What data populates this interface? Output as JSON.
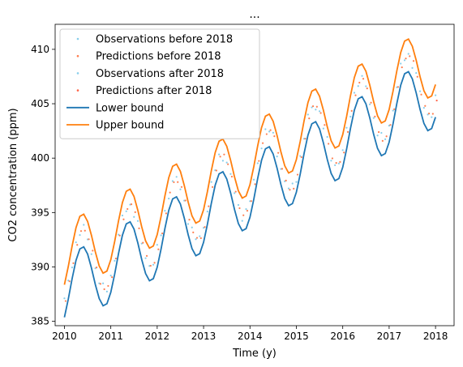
{
  "chart_data": {
    "type": "line",
    "title": "...",
    "xlabel": "Time (y)",
    "ylabel": "CO2 concentration (ppm)",
    "xlim": [
      2009.8,
      2018.4
    ],
    "ylim": [
      384.6,
      412.3
    ],
    "xticks": [
      2010,
      2011,
      2012,
      2013,
      2014,
      2015,
      2016,
      2017,
      2018
    ],
    "yticks": [
      385,
      390,
      395,
      400,
      405,
      410
    ],
    "grid": false,
    "legend_position": "top-left",
    "seasonal_model": {
      "base_2010": 389.2,
      "trend_per_year": 2.3,
      "amplitude": 3.3,
      "peak_month": 4.5,
      "half_band": 1.5,
      "samples_per_year": 12
    },
    "series": [
      {
        "name": "Observations before 2018",
        "style": "points",
        "color": "#87ceeb"
      },
      {
        "name": "Predictions before 2018",
        "style": "points",
        "color": "#ff7f50"
      },
      {
        "name": "Observations after 2018",
        "style": "points",
        "color": "#87ceeb"
      },
      {
        "name": "Predictions after 2018",
        "style": "points",
        "color": "#ff6347"
      },
      {
        "name": "Lower bound",
        "style": "line",
        "color": "#1f77b4"
      },
      {
        "name": "Upper bound",
        "style": "line",
        "color": "#ff7f0e"
      }
    ]
  }
}
